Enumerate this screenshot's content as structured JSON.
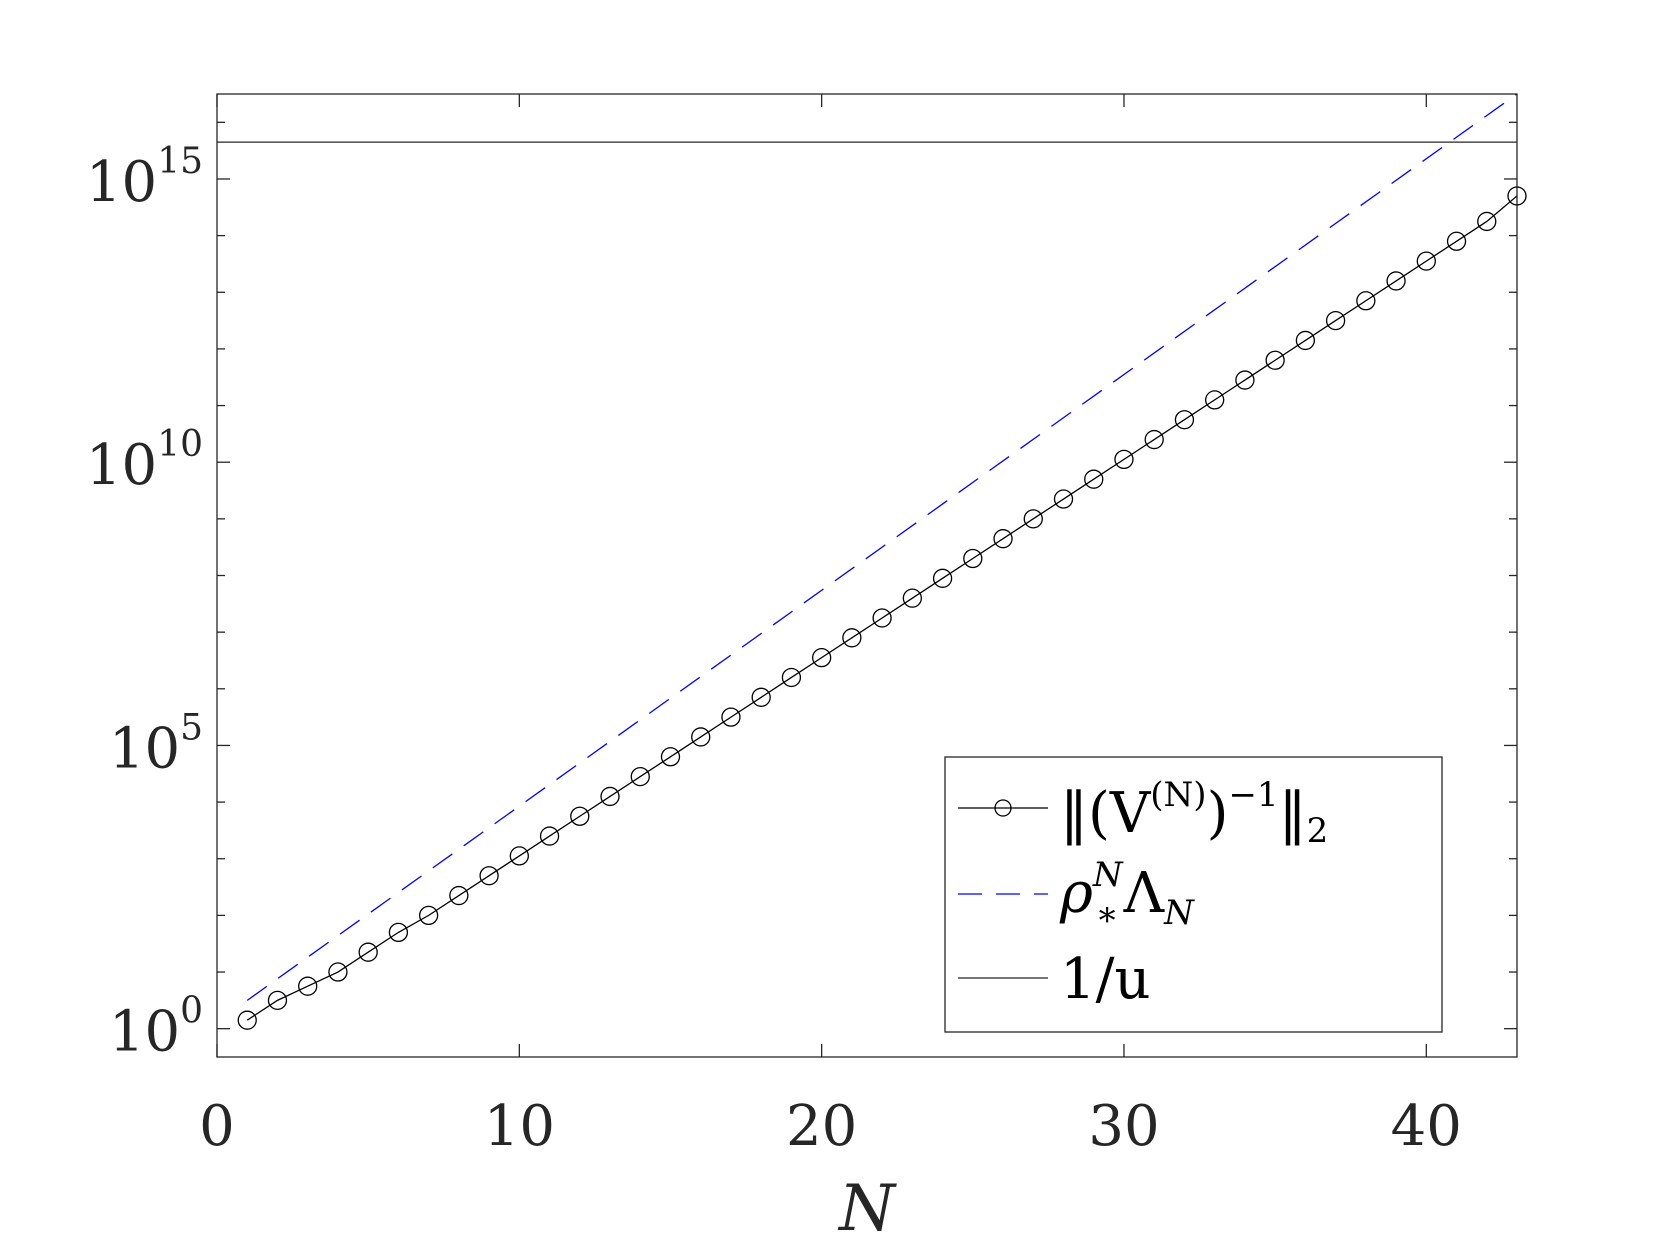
{
  "chart_data": {
    "type": "line",
    "xlabel": "N",
    "ylabel": "",
    "xlim": [
      0,
      43
    ],
    "ylim_log10": [
      -0.5,
      16.5
    ],
    "y_scale": "log",
    "grid": false,
    "legend_position": "bottom-right",
    "x_ticks": [
      0,
      10,
      20,
      30,
      40
    ],
    "x_tick_labels": [
      "0",
      "10",
      "20",
      "30",
      "40"
    ],
    "y_ticks_log10": [
      0,
      5,
      10,
      15
    ],
    "y_tick_labels": [
      {
        "base": "10",
        "exp": "0"
      },
      {
        "base": "10",
        "exp": "5"
      },
      {
        "base": "10",
        "exp": "10"
      },
      {
        "base": "10",
        "exp": "15"
      }
    ],
    "series": [
      {
        "name": "‖(V^(N))^−1‖₂",
        "style": "solid-with-circles",
        "color": "#000000",
        "x": [
          1,
          2,
          3,
          4,
          5,
          6,
          7,
          8,
          9,
          10,
          11,
          12,
          13,
          14,
          15,
          16,
          17,
          18,
          19,
          20,
          21,
          22,
          23,
          24,
          25,
          26,
          27,
          28,
          29,
          30,
          31,
          32,
          33,
          34,
          35,
          36,
          37,
          38,
          39,
          40,
          41,
          42,
          43
        ],
        "log10_y": [
          0.15,
          0.5,
          0.75,
          1.0,
          1.35,
          1.7,
          2.0,
          2.35,
          2.7,
          3.05,
          3.4,
          3.75,
          4.1,
          4.45,
          4.8,
          5.15,
          5.5,
          5.85,
          6.2,
          6.55,
          6.9,
          7.25,
          7.6,
          7.95,
          8.3,
          8.65,
          9.0,
          9.35,
          9.7,
          10.05,
          10.4,
          10.75,
          11.1,
          11.45,
          11.8,
          12.15,
          12.5,
          12.85,
          13.2,
          13.55,
          13.9,
          14.25,
          14.7
        ]
      },
      {
        "name": "ρ*^N Λ_N",
        "style": "dashed",
        "color": "#0000ff",
        "x": [
          1,
          43
        ],
        "log10_y": [
          0.5,
          16.5
        ]
      },
      {
        "name": "1/u",
        "style": "solid",
        "color": "#262626",
        "x": [
          0,
          43
        ],
        "log10_y": [
          15.65,
          15.65
        ]
      }
    ],
    "legend_entries": [
      {
        "main": "‖(V",
        "sup1": "(N)",
        "mid": ")",
        "sup2": "−1",
        "tail": "‖",
        "sub": "2"
      },
      {
        "main": "ρ",
        "sup": "N",
        "sub": "*",
        "tail": "Λ",
        "tail_sub": "N"
      },
      {
        "main": "1/u"
      }
    ]
  }
}
